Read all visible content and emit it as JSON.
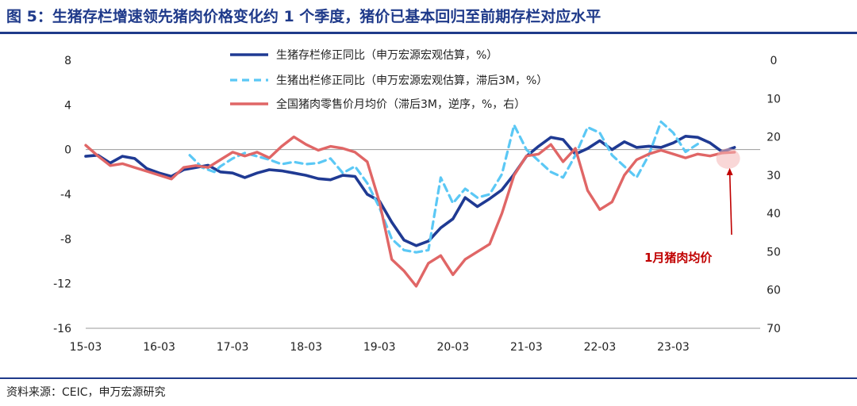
{
  "title": "图 5：生猪存栏增速领先猪肉价格变化约 1 个季度，猪价已基本回归至前期存栏对应水平",
  "source": "资料来源：CEIC，申万宏源研究",
  "chart_data": {
    "type": "line",
    "x": [
      "15-03",
      "15-09",
      "16-03",
      "16-09",
      "17-03",
      "17-09",
      "18-03",
      "18-09",
      "19-03",
      "19-09",
      "20-03",
      "20-09",
      "21-03",
      "21-09",
      "22-03",
      "22-09",
      "23-03",
      "23-09",
      "24-01"
    ],
    "x_tick_labels": [
      "15-03",
      "16-03",
      "17-03",
      "18-03",
      "19-03",
      "20-03",
      "21-03",
      "22-03",
      "23-03"
    ],
    "left_axis": {
      "min": -16,
      "max": 8,
      "ticks": [
        "8",
        "4",
        "0",
        "-4",
        "-8",
        "-12",
        "-16"
      ]
    },
    "right_axis": {
      "min": 0,
      "max": 70,
      "reversed": true,
      "ticks": [
        "0",
        "10",
        "20",
        "30",
        "40",
        "50",
        "60",
        "70"
      ]
    },
    "series": [
      {
        "name": "生猪存栏修正同比（申万宏源宏观估算，%）",
        "axis": "left",
        "color": "#1f3a93",
        "style": "solid",
        "points": [
          [
            "2015-03",
            -0.6
          ],
          [
            "2015-05",
            -0.5
          ],
          [
            "2015-07",
            -1.2
          ],
          [
            "2015-09",
            -0.6
          ],
          [
            "2015-11",
            -0.8
          ],
          [
            "2016-01",
            -1.7
          ],
          [
            "2016-03",
            -2.1
          ],
          [
            "2016-05",
            -2.4
          ],
          [
            "2016-07",
            -1.8
          ],
          [
            "2016-09",
            -1.6
          ],
          [
            "2016-11",
            -1.4
          ],
          [
            "2017-01",
            -2.0
          ],
          [
            "2017-03",
            -2.1
          ],
          [
            "2017-05",
            -2.5
          ],
          [
            "2017-07",
            -2.1
          ],
          [
            "2017-09",
            -1.8
          ],
          [
            "2017-11",
            -1.9
          ],
          [
            "2018-01",
            -2.1
          ],
          [
            "2018-03",
            -2.3
          ],
          [
            "2018-05",
            -2.6
          ],
          [
            "2018-07",
            -2.7
          ],
          [
            "2018-09",
            -2.3
          ],
          [
            "2018-11",
            -2.4
          ],
          [
            "2019-01",
            -4.0
          ],
          [
            "2019-03",
            -4.6
          ],
          [
            "2019-05",
            -6.5
          ],
          [
            "2019-07",
            -8.1
          ],
          [
            "2019-09",
            -8.6
          ],
          [
            "2019-11",
            -8.2
          ],
          [
            "2020-01",
            -7.0
          ],
          [
            "2020-03",
            -6.2
          ],
          [
            "2020-05",
            -4.3
          ],
          [
            "2020-07",
            -5.1
          ],
          [
            "2020-09",
            -4.4
          ],
          [
            "2020-11",
            -3.6
          ],
          [
            "2021-01",
            -2.2
          ],
          [
            "2021-03",
            -0.6
          ],
          [
            "2021-05",
            0.3
          ],
          [
            "2021-07",
            1.1
          ],
          [
            "2021-09",
            0.9
          ],
          [
            "2021-11",
            -0.4
          ],
          [
            "2022-01",
            0.1
          ],
          [
            "2022-03",
            0.8
          ],
          [
            "2022-05",
            0.0
          ],
          [
            "2022-07",
            0.7
          ],
          [
            "2022-09",
            0.2
          ],
          [
            "2022-11",
            0.3
          ],
          [
            "2023-01",
            0.2
          ],
          [
            "2023-03",
            0.6
          ],
          [
            "2023-05",
            1.2
          ],
          [
            "2023-07",
            1.1
          ],
          [
            "2023-09",
            0.6
          ],
          [
            "2023-11",
            -0.2
          ],
          [
            "2024-01",
            0.2
          ]
        ]
      },
      {
        "name": "生猪出栏修正同比（申万宏源宏观估算，滞后3M，%）",
        "axis": "left",
        "color": "#5bc8f5",
        "style": "dashed",
        "points": [
          [
            "2016-08",
            -0.5
          ],
          [
            "2016-10",
            -1.6
          ],
          [
            "2016-12",
            -2.0
          ],
          [
            "2017-01",
            -1.5
          ],
          [
            "2017-03",
            -0.8
          ],
          [
            "2017-05",
            -0.3
          ],
          [
            "2017-07",
            -0.6
          ],
          [
            "2017-09",
            -0.9
          ],
          [
            "2017-11",
            -1.3
          ],
          [
            "2018-01",
            -1.1
          ],
          [
            "2018-03",
            -1.3
          ],
          [
            "2018-05",
            -1.2
          ],
          [
            "2018-07",
            -0.8
          ],
          [
            "2018-09",
            -2.1
          ],
          [
            "2018-11",
            -1.5
          ],
          [
            "2019-01",
            -3.0
          ],
          [
            "2019-03",
            -5.2
          ],
          [
            "2019-05",
            -8.0
          ],
          [
            "2019-07",
            -9.0
          ],
          [
            "2019-09",
            -9.2
          ],
          [
            "2019-11",
            -9.0
          ],
          [
            "2020-01",
            -2.5
          ],
          [
            "2020-03",
            -4.8
          ],
          [
            "2020-05",
            -3.5
          ],
          [
            "2020-07",
            -4.3
          ],
          [
            "2020-09",
            -4.0
          ],
          [
            "2020-11",
            -2.2
          ],
          [
            "2021-01",
            2.2
          ],
          [
            "2021-03",
            0.0
          ],
          [
            "2021-05",
            -1.0
          ],
          [
            "2021-07",
            -2.0
          ],
          [
            "2021-09",
            -2.5
          ],
          [
            "2021-11",
            -0.5
          ],
          [
            "2022-01",
            2.0
          ],
          [
            "2022-03",
            1.5
          ],
          [
            "2022-05",
            -0.5
          ],
          [
            "2022-07",
            -1.5
          ],
          [
            "2022-09",
            -2.5
          ],
          [
            "2022-11",
            -0.5
          ],
          [
            "2023-01",
            2.5
          ],
          [
            "2023-03",
            1.5
          ],
          [
            "2023-05",
            -0.2
          ],
          [
            "2023-07",
            0.5
          ]
        ]
      },
      {
        "name": "全国猪肉零售价月均价（滞后3M，逆序，%，右）",
        "axis": "right",
        "color": "#e06666",
        "style": "solid",
        "points": [
          [
            "2015-03",
            22.2
          ],
          [
            "2015-05",
            25.0
          ],
          [
            "2015-07",
            27.5
          ],
          [
            "2015-09",
            27.0
          ],
          [
            "2015-11",
            28.0
          ],
          [
            "2016-01",
            29.0
          ],
          [
            "2016-03",
            30.0
          ],
          [
            "2016-05",
            31.0
          ],
          [
            "2016-07",
            28.0
          ],
          [
            "2016-09",
            27.5
          ],
          [
            "2016-11",
            28.0
          ],
          [
            "2017-01",
            26.0
          ],
          [
            "2017-03",
            24.0
          ],
          [
            "2017-05",
            25.0
          ],
          [
            "2017-07",
            24.0
          ],
          [
            "2017-09",
            25.5
          ],
          [
            "2017-11",
            22.5
          ],
          [
            "2018-01",
            20.0
          ],
          [
            "2018-03",
            22.0
          ],
          [
            "2018-05",
            23.5
          ],
          [
            "2018-07",
            22.5
          ],
          [
            "2018-09",
            23.0
          ],
          [
            "2018-11",
            24.0
          ],
          [
            "2019-01",
            26.5
          ],
          [
            "2019-03",
            37.0
          ],
          [
            "2019-05",
            52.0
          ],
          [
            "2019-07",
            55.0
          ],
          [
            "2019-09",
            59.0
          ],
          [
            "2019-11",
            53.0
          ],
          [
            "2020-01",
            51.0
          ],
          [
            "2020-03",
            56.0
          ],
          [
            "2020-05",
            52.0
          ],
          [
            "2020-07",
            50.0
          ],
          [
            "2020-09",
            48.0
          ],
          [
            "2020-11",
            40.0
          ],
          [
            "2021-01",
            30.0
          ],
          [
            "2021-03",
            25.0
          ],
          [
            "2021-05",
            24.5
          ],
          [
            "2021-07",
            22.0
          ],
          [
            "2021-09",
            26.5
          ],
          [
            "2021-11",
            23.0
          ],
          [
            "2022-01",
            34.0
          ],
          [
            "2022-03",
            39.0
          ],
          [
            "2022-05",
            37.0
          ],
          [
            "2022-07",
            30.0
          ],
          [
            "2022-09",
            26.0
          ],
          [
            "2022-11",
            24.5
          ],
          [
            "2023-01",
            23.5
          ],
          [
            "2023-03",
            24.5
          ],
          [
            "2023-05",
            25.5
          ],
          [
            "2023-07",
            24.5
          ],
          [
            "2023-09",
            25.0
          ],
          [
            "2023-11",
            24.2
          ],
          [
            "2024-01",
            24.0
          ]
        ]
      }
    ],
    "annotation": {
      "text": "1月猪肉均价",
      "color": "#c00000"
    }
  }
}
